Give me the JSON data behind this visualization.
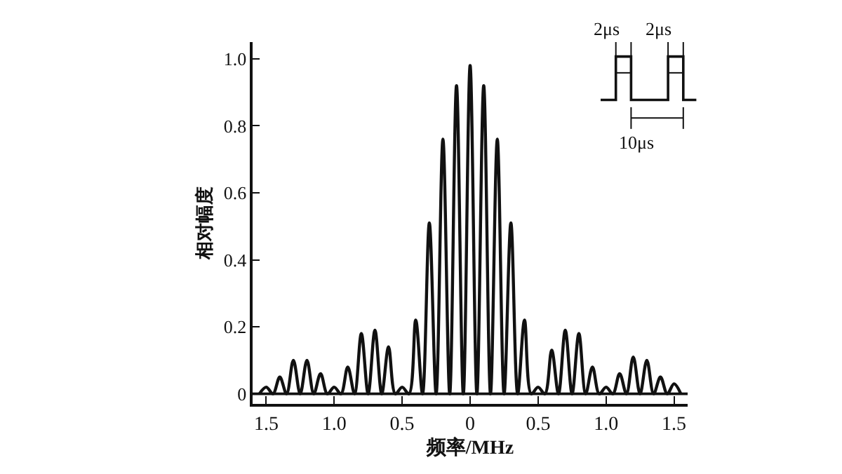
{
  "chart_data": {
    "type": "line",
    "xlabel": "频率/MHz",
    "ylabel": "相对幅度",
    "x": [
      -1.55,
      -1.5,
      -1.45,
      -1.4,
      -1.35,
      -1.3,
      -1.25,
      -1.2,
      -1.15,
      -1.1,
      -1.05,
      -1.0,
      -0.95,
      -0.9,
      -0.85,
      -0.8,
      -0.75,
      -0.7,
      -0.65,
      -0.6,
      -0.55,
      -0.5,
      -0.45,
      -0.4,
      -0.35,
      -0.3,
      -0.25,
      -0.2,
      -0.15,
      -0.1,
      -0.05,
      0,
      0.05,
      0.1,
      0.15,
      0.2,
      0.25,
      0.3,
      0.35,
      0.4,
      0.45,
      0.5,
      0.55,
      0.6,
      0.65,
      0.7,
      0.75,
      0.8,
      0.85,
      0.9,
      0.95,
      1.0,
      1.05,
      1.1,
      1.15,
      1.2,
      1.25,
      1.3,
      1.35,
      1.4,
      1.45,
      1.5,
      1.55
    ],
    "series": [
      {
        "color": "#111111",
        "values": [
          0,
          0.02,
          0,
          0.05,
          0,
          0.1,
          0,
          0.1,
          0,
          0.06,
          0,
          0.02,
          0,
          0.08,
          0,
          0.18,
          0,
          0.19,
          0,
          0.14,
          0,
          0.02,
          0,
          0.22,
          0,
          0.51,
          0,
          0.76,
          0,
          0.92,
          0,
          0.98,
          0,
          0.92,
          0,
          0.76,
          0,
          0.51,
          0,
          0.22,
          0,
          0.02,
          0,
          0.13,
          0,
          0.19,
          0,
          0.18,
          0,
          0.08,
          0,
          0.02,
          0,
          0.06,
          0,
          0.11,
          0,
          0.1,
          0,
          0.05,
          0,
          0.03,
          0
        ]
      }
    ],
    "xlim": [
      -1.6,
      1.6
    ],
    "ylim": [
      -0.03,
      1.05
    ],
    "xticks": [
      {
        "value": -1.5,
        "label": "1.5"
      },
      {
        "value": -1.0,
        "label": "1.0"
      },
      {
        "value": -0.5,
        "label": "0.5"
      },
      0,
      {
        "value": 0.5,
        "label": "0.5"
      },
      {
        "value": 1.0,
        "label": "1.0"
      },
      {
        "value": 1.5,
        "label": "1.5"
      }
    ],
    "yticks": [
      0,
      {
        "value": 0.2,
        "label": "0.2"
      },
      {
        "value": 0.4,
        "label": "0.4"
      },
      {
        "value": 0.6,
        "label": "0.6"
      },
      {
        "value": 0.8,
        "label": "0.8"
      },
      {
        "value": 1.0,
        "label": "1.0"
      }
    ],
    "grid": false,
    "ref_lines": [
      {
        "axis": "y",
        "value": 0
      }
    ],
    "marker": "none",
    "line_style": "solid",
    "annotations": [
      "2μs",
      "2μs",
      "10μs"
    ]
  }
}
